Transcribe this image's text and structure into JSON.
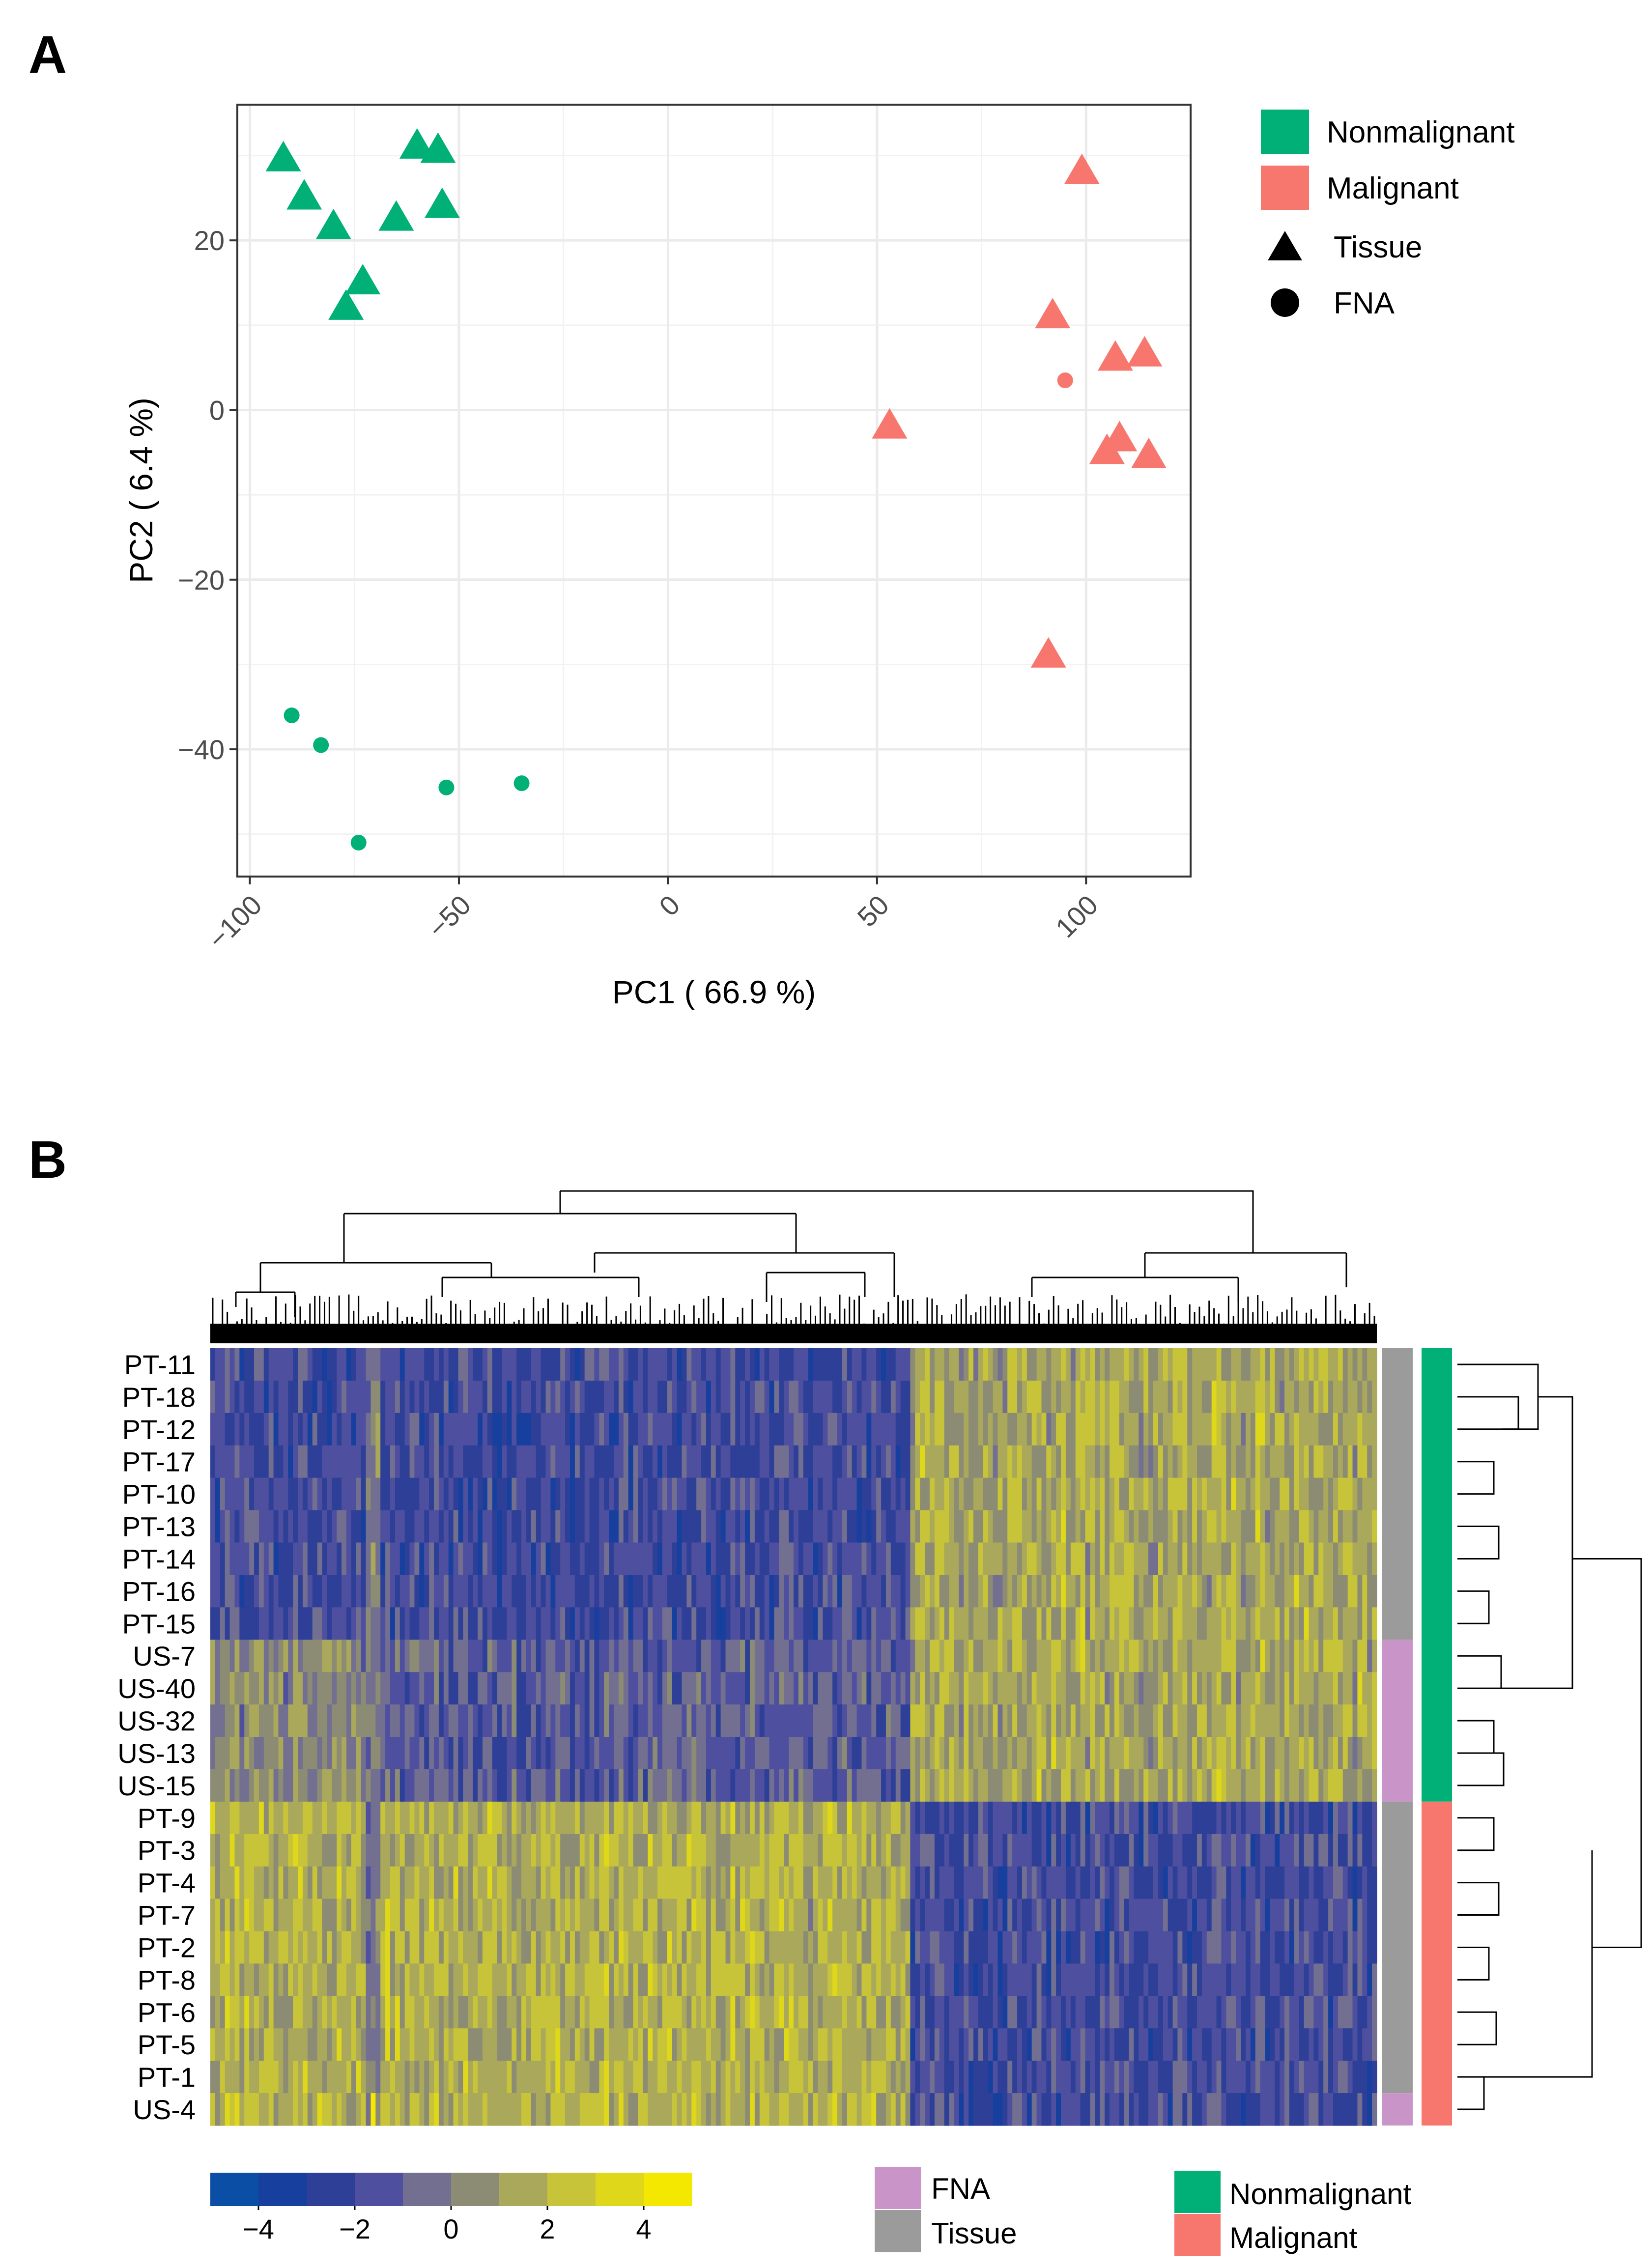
{
  "panel_a": {
    "letter": "A",
    "chart_data": {
      "type": "scatter",
      "xlabel": "PC1 ( 66.9 %)",
      "ylabel": "PC2 ( 6.4 %)",
      "xlim": [
        -103,
        125
      ],
      "ylim": [
        -55,
        36
      ],
      "xticks": [
        -100,
        -50,
        0,
        50,
        100
      ],
      "xtick_labels": [
        "−100",
        "−50",
        "0",
        "50",
        "100"
      ],
      "yticks": [
        -40,
        -20,
        0,
        20
      ],
      "ytick_labels": [
        "−40",
        "−20",
        "0",
        "20"
      ],
      "grid": true,
      "series": [
        {
          "name": "Nonmalignant Tissue",
          "group": "Nonmalignant",
          "shape": "Tissue",
          "points": [
            [
              -92,
              29.5
            ],
            [
              -87,
              25
            ],
            [
              -80,
              21.5
            ],
            [
              -65,
              22.5
            ],
            [
              -60,
              31
            ],
            [
              -55,
              30.5
            ],
            [
              -54,
              24
            ],
            [
              -73,
              15
            ],
            [
              -77,
              12
            ]
          ]
        },
        {
          "name": "Nonmalignant FNA",
          "group": "Nonmalignant",
          "shape": "FNA",
          "points": [
            [
              -90,
              -36
            ],
            [
              -83,
              -39.5
            ],
            [
              -53,
              -44.5
            ],
            [
              -35,
              -44
            ],
            [
              -74,
              -51
            ]
          ]
        },
        {
          "name": "Malignant Tissue",
          "group": "Malignant",
          "shape": "Tissue",
          "points": [
            [
              99,
              28
            ],
            [
              92,
              11
            ],
            [
              107,
              6
            ],
            [
              114,
              6.5
            ],
            [
              53,
              -2
            ],
            [
              108,
              -3.5
            ],
            [
              105,
              -5
            ],
            [
              115,
              -5.5
            ],
            [
              91,
              -29
            ]
          ]
        },
        {
          "name": "Malignant FNA",
          "group": "Malignant",
          "shape": "FNA",
          "points": [
            [
              95,
              3.5
            ]
          ]
        }
      ]
    },
    "legend": {
      "nonmalignant": "Nonmalignant",
      "malignant": "Malignant",
      "tissue": "Tissue",
      "fna": "FNA"
    }
  },
  "panel_b": {
    "letter": "B",
    "chart_data": {
      "type": "heatmap",
      "rows": [
        "PT-11",
        "PT-18",
        "PT-12",
        "PT-17",
        "PT-10",
        "PT-13",
        "PT-14",
        "PT-16",
        "PT-15",
        "US-7",
        "US-40",
        "US-32",
        "US-13",
        "US-15",
        "PT-9",
        "PT-3",
        "PT-4",
        "PT-7",
        "PT-2",
        "PT-8",
        "PT-6",
        "PT-5",
        "PT-1",
        "US-4"
      ],
      "row_sample_type": [
        "Tissue",
        "Tissue",
        "Tissue",
        "Tissue",
        "Tissue",
        "Tissue",
        "Tissue",
        "Tissue",
        "Tissue",
        "FNA",
        "FNA",
        "FNA",
        "FNA",
        "FNA",
        "Tissue",
        "Tissue",
        "Tissue",
        "Tissue",
        "Tissue",
        "Tissue",
        "Tissue",
        "Tissue",
        "Tissue",
        "FNA"
      ],
      "row_group": [
        "Nonmalignant",
        "Nonmalignant",
        "Nonmalignant",
        "Nonmalignant",
        "Nonmalignant",
        "Nonmalignant",
        "Nonmalignant",
        "Nonmalignant",
        "Nonmalignant",
        "Nonmalignant",
        "Nonmalignant",
        "Nonmalignant",
        "Nonmalignant",
        "Nonmalignant",
        "Malignant",
        "Malignant",
        "Malignant",
        "Malignant",
        "Malignant",
        "Malignant",
        "Malignant",
        "Malignant",
        "Malignant",
        "Malignant"
      ],
      "column_cluster_split_fraction": 0.6,
      "colorscale_range": [
        -5,
        5
      ],
      "colorscale_ticks": [
        -4,
        -2,
        0,
        2,
        4
      ],
      "colorscale_tick_labels": [
        "−4",
        "−2",
        "0",
        "2",
        "4"
      ],
      "colorscale_colors": [
        "#0a4ea6",
        "#173f9e",
        "#2e3f98",
        "#4e4f9f",
        "#726f90",
        "#8c8c74",
        "#aaa85a",
        "#c8c43a",
        "#dfd81a",
        "#f5e800"
      ],
      "block_pattern": {
        "nonmalignant_left": "low (blue)",
        "nonmalignant_right": "high (olive-yellow)",
        "malignant_left": "high (olive-yellow)",
        "malignant_right": "low (blue)"
      }
    },
    "annotation_colors": {
      "FNA": "#c995c9",
      "Tissue": "#9b9b9b",
      "Nonmalignant": "#00b077",
      "Malignant": "#f7766d"
    },
    "legend": {
      "fna": "FNA",
      "tissue": "Tissue",
      "nonmalignant": "Nonmalignant",
      "malignant": "Malignant"
    }
  },
  "colors": {
    "nonmalignant": "#00b077",
    "malignant": "#f7766d",
    "grid": "#ebebeb",
    "panel_border": "#333333"
  }
}
